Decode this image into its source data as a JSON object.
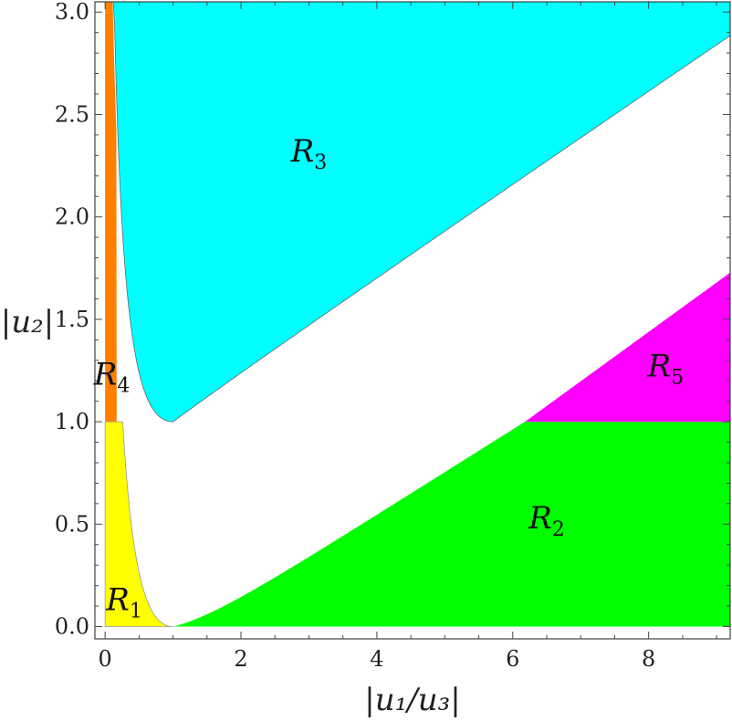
{
  "chart_data": {
    "type": "area",
    "xlabel": "|u₁/u₃|",
    "ylabel": "|u₂|",
    "xlim": [
      -0.15,
      9.2
    ],
    "ylim": [
      -0.06,
      3.05
    ],
    "x_ticks": [
      "0",
      "2",
      "4",
      "6",
      "8"
    ],
    "x_tick_values": [
      0,
      2,
      4,
      6,
      8
    ],
    "y_ticks": [
      "0.0",
      "0.5",
      "1.0",
      "1.5",
      "2.0",
      "2.5",
      "3.0"
    ],
    "y_tick_values": [
      0.0,
      0.5,
      1.0,
      1.5,
      2.0,
      2.5,
      3.0
    ],
    "grid": false,
    "regions": [
      {
        "name": "R1",
        "label": "R",
        "subscript": "1",
        "color": "#ffff00",
        "anchor": [
          0.28,
          0.08
        ],
        "description_points": [
          [
            0.0,
            0.0
          ],
          [
            0.0,
            1.0
          ],
          [
            0.17,
            1.0
          ],
          [
            0.3,
            0.6
          ],
          [
            0.5,
            0.25
          ],
          [
            0.75,
            0.05
          ],
          [
            1.0,
            0.0
          ]
        ]
      },
      {
        "name": "R2",
        "label": "R",
        "subscript": "2",
        "color": "#00ff00",
        "anchor": [
          6.5,
          0.48
        ],
        "description_points": [
          [
            1.0,
            0.0
          ],
          [
            2.0,
            0.2
          ],
          [
            4.0,
            0.6
          ],
          [
            5.8,
            1.0
          ],
          [
            9.2,
            1.0
          ],
          [
            9.2,
            0.0
          ]
        ]
      },
      {
        "name": "R3",
        "label": "R",
        "subscript": "3",
        "color": "#00ffff",
        "anchor": [
          3.0,
          2.27
        ],
        "description_points": [
          [
            0.06,
            3.05
          ],
          [
            0.1,
            2.8
          ],
          [
            0.2,
            1.95
          ],
          [
            0.4,
            1.3
          ],
          [
            0.7,
            1.05
          ],
          [
            1.0,
            1.0
          ],
          [
            2.0,
            1.2
          ],
          [
            4.0,
            1.7
          ],
          [
            6.0,
            2.2
          ],
          [
            8.0,
            2.55
          ],
          [
            9.2,
            2.81
          ],
          [
            9.2,
            3.05
          ]
        ]
      },
      {
        "name": "R4",
        "label": "R",
        "subscript": "4",
        "color": "#ff7f00",
        "anchor": [
          0.1,
          1.18
        ],
        "description_points": [
          [
            0.0,
            1.0
          ],
          [
            0.0,
            3.05
          ],
          [
            0.06,
            3.05
          ],
          [
            0.1,
            2.8
          ],
          [
            0.2,
            1.95
          ],
          [
            0.17,
            1.0
          ]
        ]
      },
      {
        "name": "R5",
        "label": "R",
        "subscript": "5",
        "color": "#ff00ff",
        "anchor": [
          8.25,
          1.22
        ],
        "description_points": [
          [
            5.8,
            1.0
          ],
          [
            9.2,
            1.0
          ],
          [
            9.2,
            1.81
          ]
        ]
      }
    ]
  }
}
